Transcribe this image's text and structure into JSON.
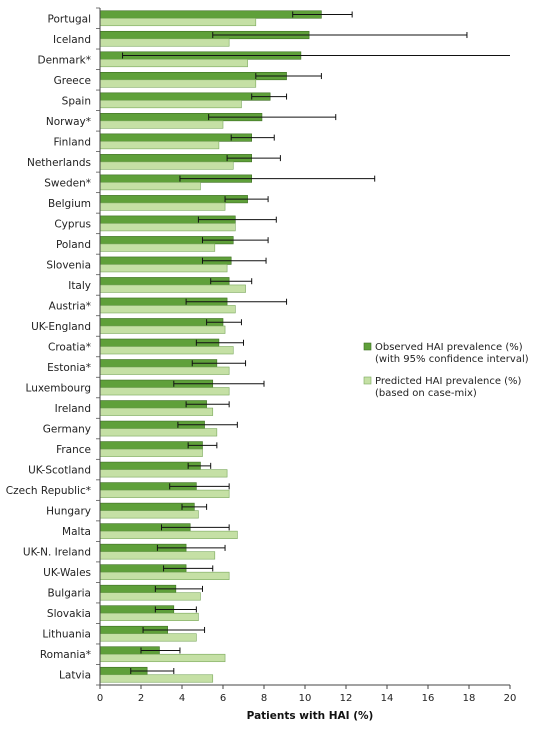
{
  "chart_data": {
    "type": "bar",
    "orientation": "horizontal",
    "categories": [
      "Portugal",
      "Iceland",
      "Denmark*",
      "Greece",
      "Spain",
      "Norway*",
      "Finland",
      "Netherlands",
      "Sweden*",
      "Belgium",
      "Cyprus",
      "Poland",
      "Slovenia",
      "Italy",
      "Austria*",
      "UK-England",
      "Croatia*",
      "Estonia*",
      "Luxembourg",
      "Ireland",
      "Germany",
      "France",
      "UK-Scotland",
      "Czech Republic*",
      "Hungary",
      "Malta",
      "UK-N. Ireland",
      "UK-Wales",
      "Bulgaria",
      "Slovakia",
      "Lithuania",
      "Romania*",
      "Latvia"
    ],
    "series": [
      {
        "name": "Observed HAI prevalence (%)",
        "name_line2": "(with 95% confidence interval)",
        "color": "#5fa03a",
        "values": [
          10.8,
          10.2,
          9.8,
          9.1,
          8.3,
          7.9,
          7.4,
          7.4,
          7.4,
          7.2,
          6.6,
          6.5,
          6.4,
          6.3,
          6.2,
          6.0,
          5.8,
          5.7,
          5.5,
          5.2,
          5.1,
          5.0,
          4.9,
          4.7,
          4.6,
          4.4,
          4.2,
          4.2,
          3.7,
          3.6,
          3.3,
          2.9,
          2.3
        ],
        "ci_low": [
          9.4,
          5.5,
          1.1,
          7.6,
          7.4,
          5.3,
          6.4,
          6.2,
          3.9,
          6.1,
          4.8,
          5.0,
          5.0,
          5.4,
          4.2,
          5.2,
          4.7,
          4.5,
          3.6,
          4.2,
          3.8,
          4.3,
          4.3,
          3.4,
          4.0,
          3.0,
          2.8,
          3.1,
          2.7,
          2.7,
          2.1,
          2.0,
          1.5
        ],
        "ci_high": [
          12.3,
          17.9,
          20.0,
          10.8,
          9.1,
          11.5,
          8.5,
          8.8,
          13.4,
          8.2,
          8.6,
          8.2,
          8.1,
          7.4,
          9.1,
          6.9,
          7.0,
          7.1,
          8.0,
          6.3,
          6.7,
          5.7,
          5.4,
          6.3,
          5.2,
          6.3,
          6.1,
          5.5,
          5.0,
          4.7,
          5.1,
          3.9,
          3.6
        ]
      },
      {
        "name": "Predicted HAI prevalence (%)",
        "name_line2": "(based on case-mix)",
        "color": "#c5e0a5",
        "values": [
          7.6,
          6.3,
          7.2,
          7.6,
          6.9,
          6.0,
          5.8,
          6.5,
          4.9,
          6.1,
          6.6,
          5.6,
          6.2,
          7.1,
          6.6,
          6.1,
          6.5,
          6.3,
          6.3,
          5.5,
          5.7,
          5.0,
          6.2,
          6.3,
          4.8,
          6.7,
          5.6,
          6.3,
          4.9,
          4.8,
          4.7,
          6.1,
          5.5
        ]
      }
    ],
    "xlabel": "Patients with HAI (%)",
    "xlim": [
      0,
      20
    ],
    "xticks": [
      "0",
      "2",
      "4",
      "6",
      "8",
      "10",
      "12",
      "14",
      "16",
      "18",
      "20"
    ],
    "grid": false,
    "legend_position": "right"
  }
}
